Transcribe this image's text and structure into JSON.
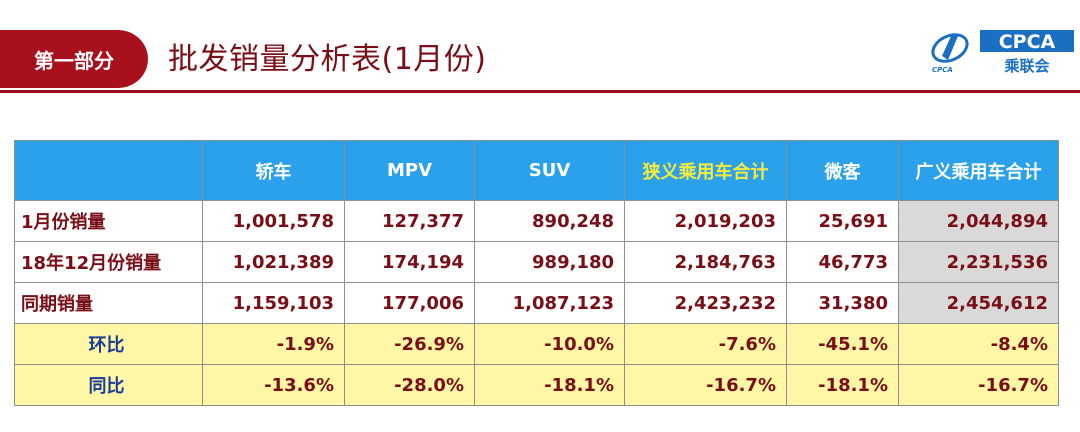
{
  "header": {
    "section_label": "第一部分",
    "title": "批发销量分析表(1月份)",
    "logo": {
      "abbr": "CPCA",
      "name": "乘联会",
      "emblem": "CPCA"
    }
  },
  "table": {
    "columns": [
      "",
      "轿车",
      "MPV",
      "SUV",
      "狭义乘用车合计",
      "微客",
      "广义乘用车合计"
    ],
    "rows": [
      {
        "label": "1月份销量",
        "values": [
          "1,001,578",
          "127,377",
          "890,248",
          "2,019,203",
          "25,691",
          "2,044,894"
        ]
      },
      {
        "label": "18年12月份销量",
        "values": [
          "1,021,389",
          "174,194",
          "989,180",
          "2,184,763",
          "46,773",
          "2,231,536"
        ]
      },
      {
        "label": "同期销量",
        "values": [
          "1,159,103",
          "177,006",
          "1,087,123",
          "2,423,232",
          "31,380",
          "2,454,612"
        ]
      },
      {
        "label": "环比",
        "values": [
          "-1.9%",
          "-26.9%",
          "-10.0%",
          "-7.6%",
          "-45.1%",
          "-8.4%"
        ]
      },
      {
        "label": "同比",
        "values": [
          "-13.6%",
          "-28.0%",
          "-18.1%",
          "-16.7%",
          "-18.1%",
          "-16.7%"
        ]
      }
    ]
  },
  "colors": {
    "brand_red": "#a8101e",
    "header_blue": "#2aa1ea",
    "header_highlight": "#f6ea3b",
    "ratio_row_bg": "#fff7a6",
    "total_col_bg": "#d9d9d9"
  }
}
